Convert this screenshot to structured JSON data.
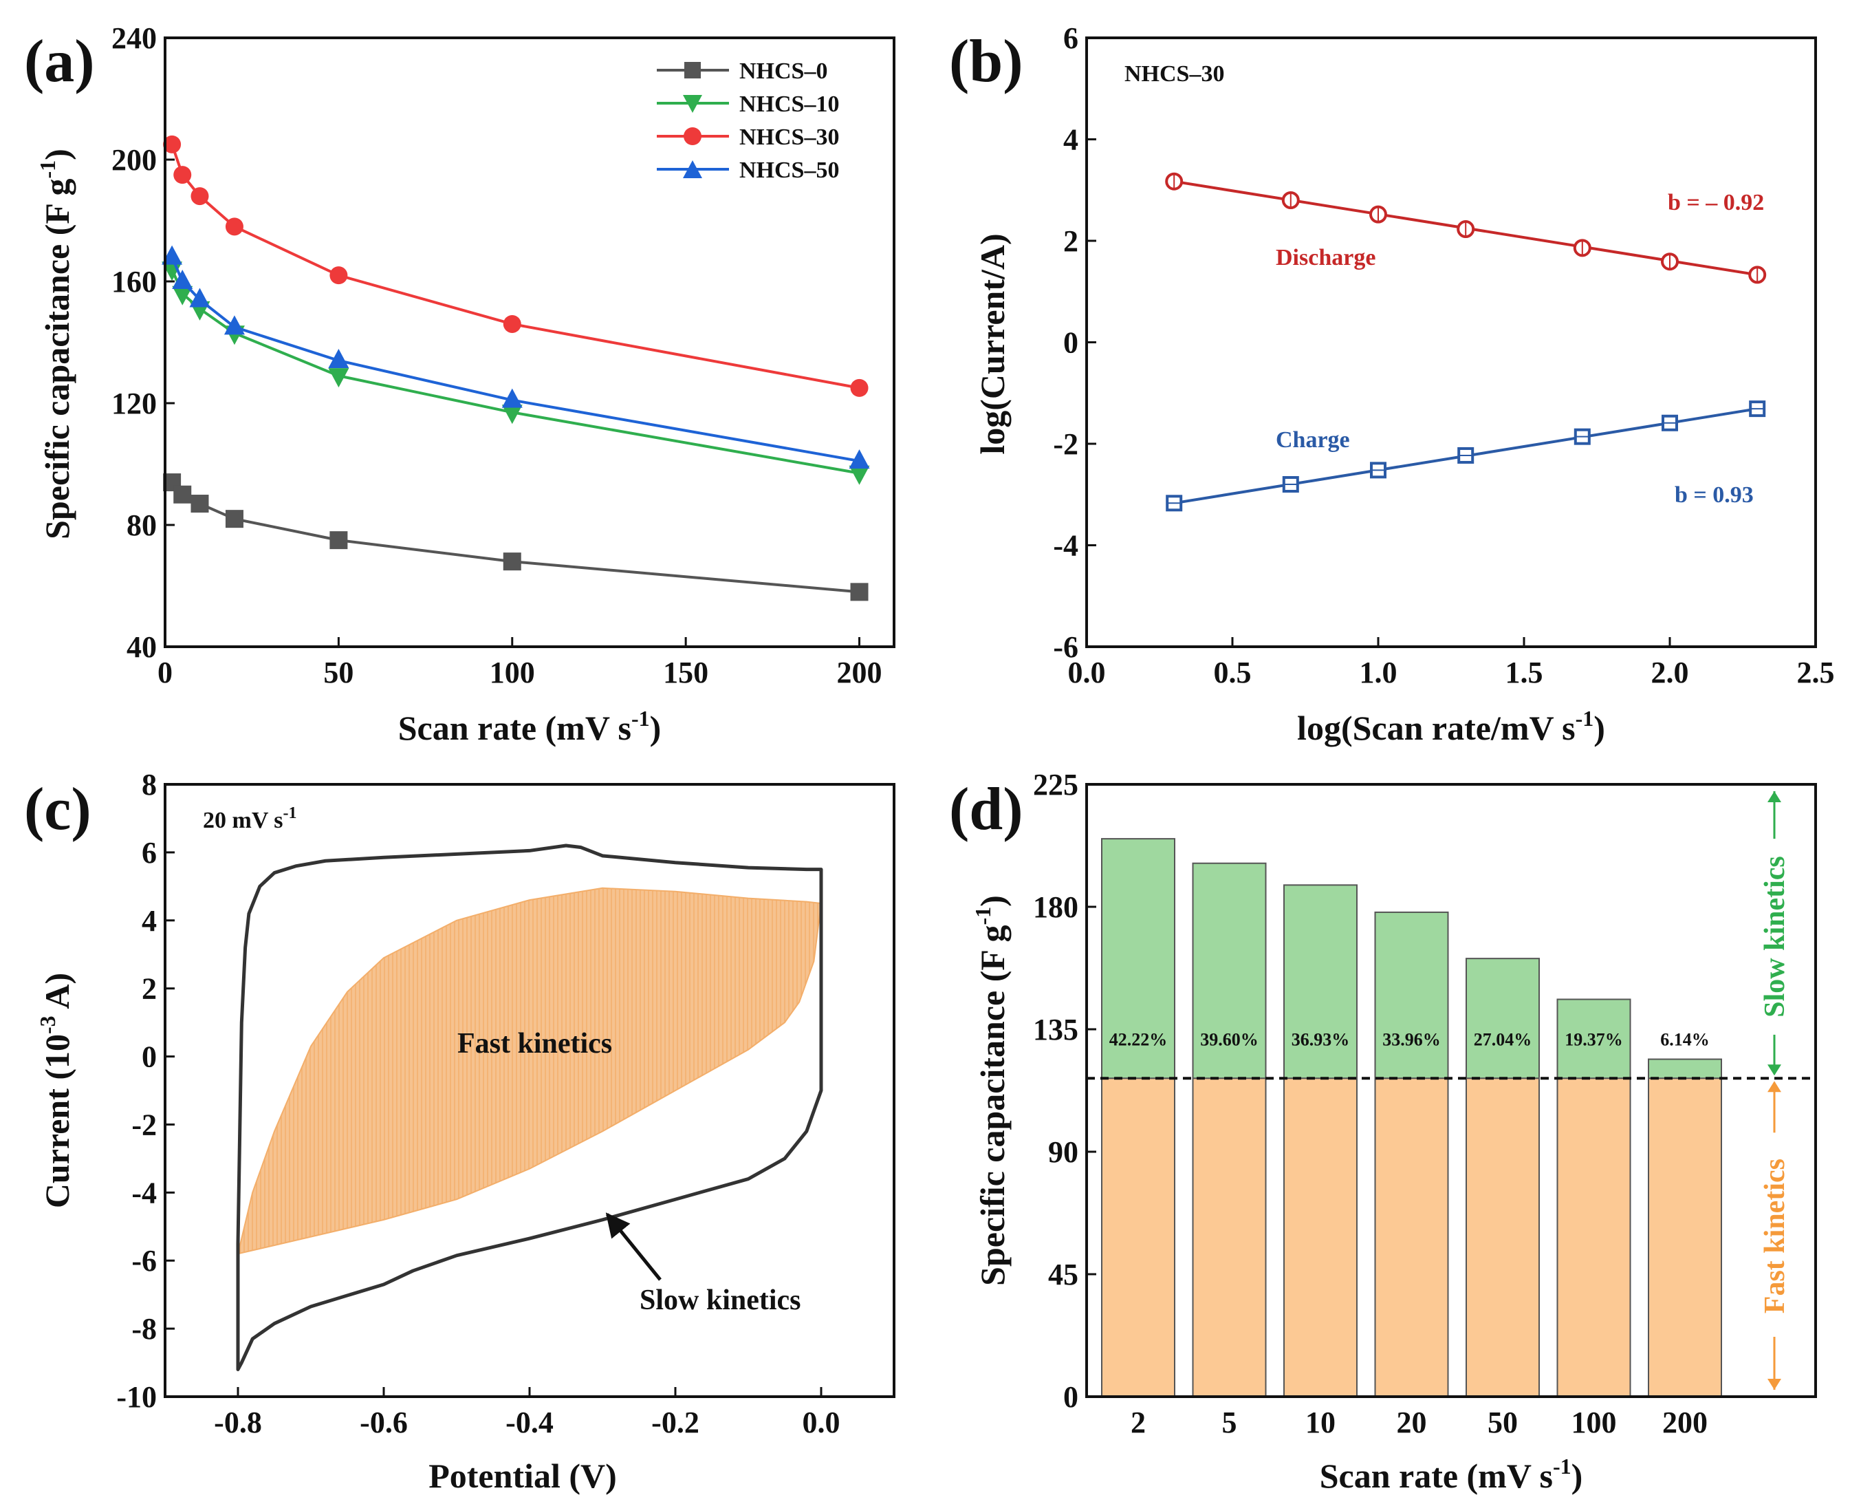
{
  "chart_data": [
    {
      "panel": "(a)",
      "type": "line",
      "xlabel": "Scan rate (mV s",
      "xlabel_sup": "-1",
      "xlabel_end": ")",
      "ylabel": "Specific capacitance (F g",
      "ylabel_sup": "-1",
      "ylabel_end": ")",
      "xlim": [
        0,
        210
      ],
      "ylim": [
        40,
        240
      ],
      "xticks": [
        0,
        50,
        100,
        150,
        200
      ],
      "yticks": [
        40,
        80,
        120,
        160,
        200,
        240
      ],
      "legend_position": "top-right",
      "series": [
        {
          "name": "NHCS–0",
          "color": "#555555",
          "marker": "square",
          "x": [
            2,
            5,
            10,
            20,
            50,
            100,
            200
          ],
          "y": [
            94,
            90,
            87,
            82,
            75,
            68,
            58
          ]
        },
        {
          "name": "NHCS–10",
          "color": "#2fae4e",
          "marker": "triangle-down",
          "x": [
            2,
            5,
            10,
            20,
            50,
            100,
            200
          ],
          "y": [
            164,
            156,
            151,
            143,
            129,
            117,
            97
          ]
        },
        {
          "name": "NHCS–30",
          "color": "#ee3a3a",
          "marker": "circle",
          "x": [
            2,
            5,
            10,
            20,
            50,
            100,
            200
          ],
          "y": [
            205,
            195,
            188,
            178,
            162,
            146,
            125
          ]
        },
        {
          "name": "NHCS–50",
          "color": "#1e63d6",
          "marker": "triangle-up",
          "x": [
            2,
            5,
            10,
            20,
            50,
            100,
            200
          ],
          "y": [
            168,
            160,
            154,
            145,
            134,
            121,
            101
          ]
        }
      ]
    },
    {
      "panel": "(b)",
      "type": "scatter",
      "title": "NHCS–30",
      "xlabel": "log(Scan rate/mV s",
      "xlabel_sup": "-1",
      "xlabel_end": ")",
      "ylabel": "log(Current/A)",
      "xlim": [
        0.0,
        2.5
      ],
      "ylim": [
        -6,
        6
      ],
      "xticks": [
        0.0,
        0.5,
        1.0,
        1.5,
        2.0,
        2.5
      ],
      "yticks": [
        -6,
        -4,
        -2,
        0,
        2,
        4,
        6
      ],
      "series": [
        {
          "name": "Discharge",
          "color": "#c62828",
          "marker": "open-circle",
          "x": [
            0.3,
            0.7,
            1.0,
            1.3,
            1.7,
            2.0,
            2.3
          ],
          "y": [
            3.17,
            2.8,
            2.52,
            2.23,
            1.86,
            1.59,
            1.33
          ],
          "slope_label": "b = – 0.92"
        },
        {
          "name": "Charge",
          "color": "#2a5aa6",
          "marker": "open-square",
          "x": [
            0.3,
            0.7,
            1.0,
            1.3,
            1.7,
            2.0,
            2.3
          ],
          "y": [
            -3.17,
            -2.8,
            -2.52,
            -2.23,
            -1.86,
            -1.59,
            -1.31
          ],
          "slope_label": "b = 0.93"
        }
      ]
    },
    {
      "panel": "(c)",
      "type": "area",
      "annotation_rate": "20 mV s",
      "annotation_rate_sup": "-1",
      "xlabel": "Potential (V)",
      "ylabel": "Current (10",
      "ylabel_sup": "-3",
      "ylabel_end": " A)",
      "xlim": [
        -0.9,
        0.1
      ],
      "ylim": [
        -10,
        8
      ],
      "xticks": [
        -0.8,
        -0.6,
        -0.4,
        -0.2,
        0.0
      ],
      "yticks": [
        -10,
        -8,
        -6,
        -4,
        -2,
        0,
        2,
        4,
        6,
        8
      ],
      "fast_label": "Fast kinetics",
      "slow_label": "Slow kinetics",
      "cv_curve": {
        "x": [
          -0.8,
          -0.795,
          -0.79,
          -0.785,
          -0.77,
          -0.75,
          -0.72,
          -0.68,
          -0.6,
          -0.5,
          -0.4,
          -0.35,
          -0.33,
          -0.3,
          -0.2,
          -0.1,
          -0.02,
          0.0,
          0.0,
          -0.02,
          -0.05,
          -0.1,
          -0.2,
          -0.3,
          -0.4,
          -0.5,
          -0.56,
          -0.6,
          -0.7,
          -0.75,
          -0.78,
          -0.795,
          -0.8,
          -0.8
        ],
        "y": [
          -5.5,
          1.0,
          3.2,
          4.2,
          5.0,
          5.4,
          5.6,
          5.75,
          5.85,
          5.95,
          6.05,
          6.2,
          6.15,
          5.9,
          5.7,
          5.55,
          5.5,
          5.5,
          -1.0,
          -2.2,
          -3.0,
          -3.6,
          -4.2,
          -4.8,
          -5.35,
          -5.85,
          -6.3,
          -6.7,
          -7.35,
          -7.85,
          -8.3,
          -9.0,
          -9.2,
          -5.5
        ]
      },
      "capacitive_area": {
        "x": [
          -0.8,
          -0.78,
          -0.75,
          -0.7,
          -0.65,
          -0.6,
          -0.5,
          -0.4,
          -0.3,
          -0.2,
          -0.1,
          -0.02,
          0.0,
          -0.01,
          -0.03,
          -0.05,
          -0.1,
          -0.2,
          -0.3,
          -0.4,
          -0.5,
          -0.6,
          -0.7,
          -0.75,
          -0.8
        ],
        "y": [
          -5.8,
          -4.0,
          -2.2,
          0.3,
          1.9,
          2.9,
          4.0,
          4.6,
          4.95,
          4.85,
          4.65,
          4.55,
          4.5,
          2.8,
          1.6,
          1.0,
          0.2,
          -1.0,
          -2.2,
          -3.3,
          -4.2,
          -4.8,
          -5.3,
          -5.55,
          -5.8
        ]
      }
    },
    {
      "panel": "(d)",
      "type": "bar",
      "xlabel": "Scan rate (mV s",
      "xlabel_sup": "-1",
      "xlabel_end": ")",
      "ylabel": "Specific capacitance (F g",
      "ylabel_sup": "-1",
      "ylabel_end": ")",
      "ylim": [
        0,
        225
      ],
      "yticks": [
        0,
        45,
        90,
        135,
        180,
        225
      ],
      "categories": [
        "2",
        "5",
        "10",
        "20",
        "50",
        "100",
        "200"
      ],
      "totals": [
        205,
        196,
        188,
        178,
        161,
        146,
        124
      ],
      "fast_kinetics_level": 117,
      "percent_labels": [
        "42.22%",
        "39.60%",
        "36.93%",
        "33.96%",
        "27.04%",
        "19.37%",
        "6.14%"
      ],
      "slow_label": "Slow kinetics",
      "fast_label": "Fast kinetics",
      "colors": {
        "slow": "#9fd89f",
        "fast": "#fcc994",
        "slow_arrow": "#2fae4e",
        "fast_arrow": "#f59a3a"
      }
    }
  ]
}
